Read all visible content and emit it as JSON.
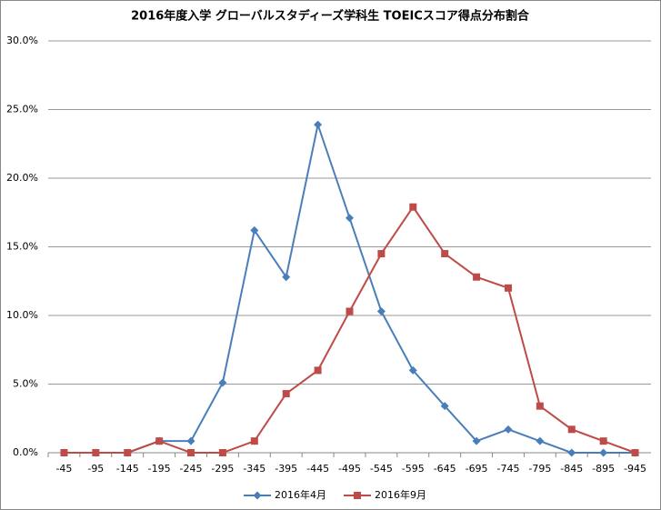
{
  "chart_data": {
    "type": "line",
    "title": "2016年度入学 グローバルスタディーズ学科生 TOEICスコア得点分布割合",
    "categories": [
      "-45",
      "-95",
      "-145",
      "-195",
      "-245",
      "-295",
      "-345",
      "-395",
      "-445",
      "-495",
      "-545",
      "-595",
      "-645",
      "-695",
      "-745",
      "-795",
      "-845",
      "-895",
      "-945"
    ],
    "series": [
      {
        "name": "2016年4月",
        "color": "#4a7ebb",
        "marker": "diamond",
        "values": [
          0,
          0,
          0,
          0.85,
          0.85,
          5.1,
          16.2,
          12.8,
          23.9,
          17.1,
          10.3,
          6.0,
          3.4,
          0.85,
          1.7,
          0.85,
          0,
          0,
          0
        ]
      },
      {
        "name": "2016年9月",
        "color": "#be4b48",
        "marker": "square",
        "values": [
          0,
          0,
          0,
          0.85,
          0,
          0,
          0.85,
          4.3,
          6.0,
          10.3,
          14.5,
          17.9,
          14.5,
          12.8,
          12.0,
          3.4,
          1.7,
          0.85,
          0
        ]
      }
    ],
    "ylim": [
      0,
      30
    ],
    "yticks": [
      {
        "value": 0,
        "label": "0.0%"
      },
      {
        "value": 5,
        "label": "5.0%"
      },
      {
        "value": 10,
        "label": "10.0%"
      },
      {
        "value": 15,
        "label": "15.0%"
      },
      {
        "value": 20,
        "label": "20.0%"
      },
      {
        "value": 25,
        "label": "25.0%"
      },
      {
        "value": 30,
        "label": "30.0%"
      }
    ],
    "grid": true,
    "legend": "bottom"
  }
}
